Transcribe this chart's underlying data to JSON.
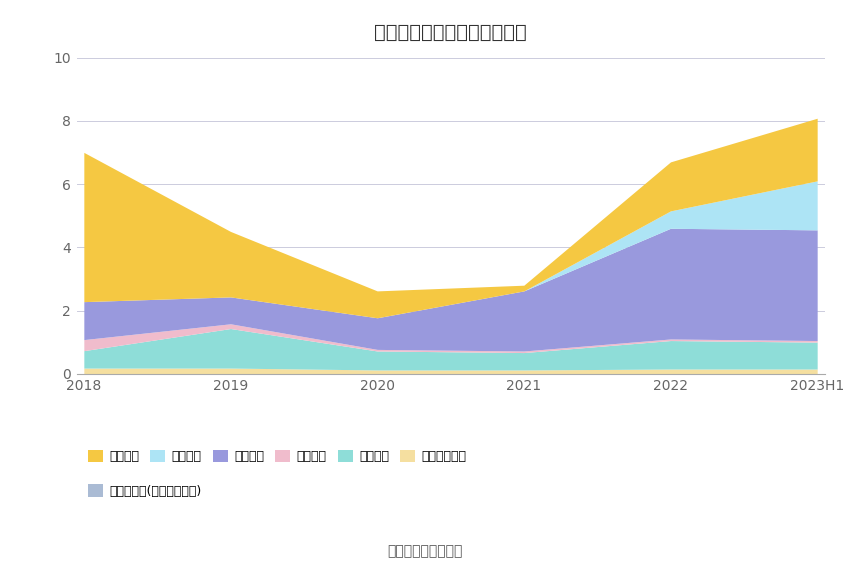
{
  "title": "历年主要负债堆积图（亿元）",
  "source": "数据来源：恒生聚源",
  "x_labels": [
    "2018",
    "2019",
    "2020",
    "2021",
    "2022",
    "2023H1"
  ],
  "ylim": [
    0,
    10
  ],
  "yticks": [
    0,
    2,
    4,
    6,
    8,
    10
  ],
  "series": [
    {
      "name": "应付职工薪酬",
      "color": "#F5DFA0",
      "values": [
        0.18,
        0.18,
        0.12,
        0.12,
        0.15,
        0.15
      ]
    },
    {
      "name": "合同负债",
      "color": "#8EDDD8",
      "values": [
        0.55,
        1.25,
        0.6,
        0.55,
        0.9,
        0.85
      ]
    },
    {
      "name": "预收款项",
      "color": "#F0BCCC",
      "values": [
        0.35,
        0.15,
        0.05,
        0.05,
        0.05,
        0.05
      ]
    },
    {
      "name": "应付账款",
      "color": "#9999DD",
      "values": [
        1.2,
        0.85,
        1.0,
        1.9,
        3.5,
        3.5
      ]
    },
    {
      "name": "应付票据",
      "color": "#ADE4F5",
      "values": [
        0.0,
        0.0,
        0.0,
        0.0,
        0.55,
        1.55
      ]
    },
    {
      "name": "短期借款",
      "color": "#F5C842",
      "values": [
        4.72,
        2.07,
        0.85,
        0.18,
        1.55,
        1.98
      ]
    }
  ],
  "extra_series": {
    "name": "其他应付款(含利息和股利)",
    "color": "#AABBD4"
  },
  "background_color": "#ffffff",
  "title_fontsize": 14,
  "source_fontsize": 10,
  "legend_row1": [
    "短期借款",
    "应付票据",
    "应付账款",
    "预收款项",
    "合同负债",
    "应付职工薪酬"
  ],
  "legend_row2": [
    "其他应付款(含利息和股利)"
  ]
}
